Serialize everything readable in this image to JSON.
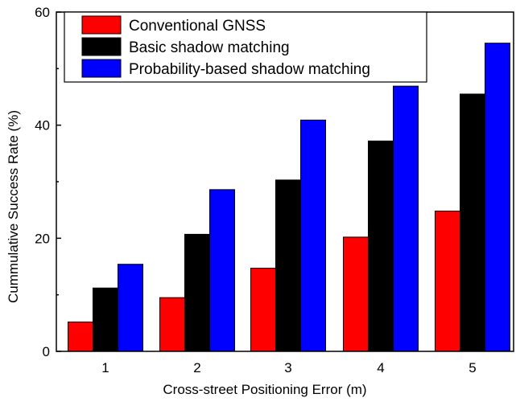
{
  "chart_data": {
    "type": "bar",
    "xlabel": "Cross-street Positioning Error (m)",
    "ylabel": "Cummulative Success Rate (%)",
    "categories": [
      "1",
      "2",
      "3",
      "4",
      "5"
    ],
    "ylim": [
      0,
      60
    ],
    "yticks": [
      "0",
      "20",
      "40",
      "60"
    ],
    "grid": false,
    "legend_position": "top",
    "series": [
      {
        "name": "Conventional GNSS",
        "color": "#ff0000",
        "values": [
          5.2,
          9.5,
          14.7,
          20.2,
          24.8
        ]
      },
      {
        "name": "Basic shadow matching",
        "color": "#000000",
        "values": [
          11.2,
          20.7,
          30.3,
          37.2,
          45.5
        ]
      },
      {
        "name": "Probability-based shadow matching",
        "color": "#0000ff",
        "values": [
          15.4,
          28.6,
          40.9,
          46.9,
          54.5
        ]
      }
    ]
  }
}
